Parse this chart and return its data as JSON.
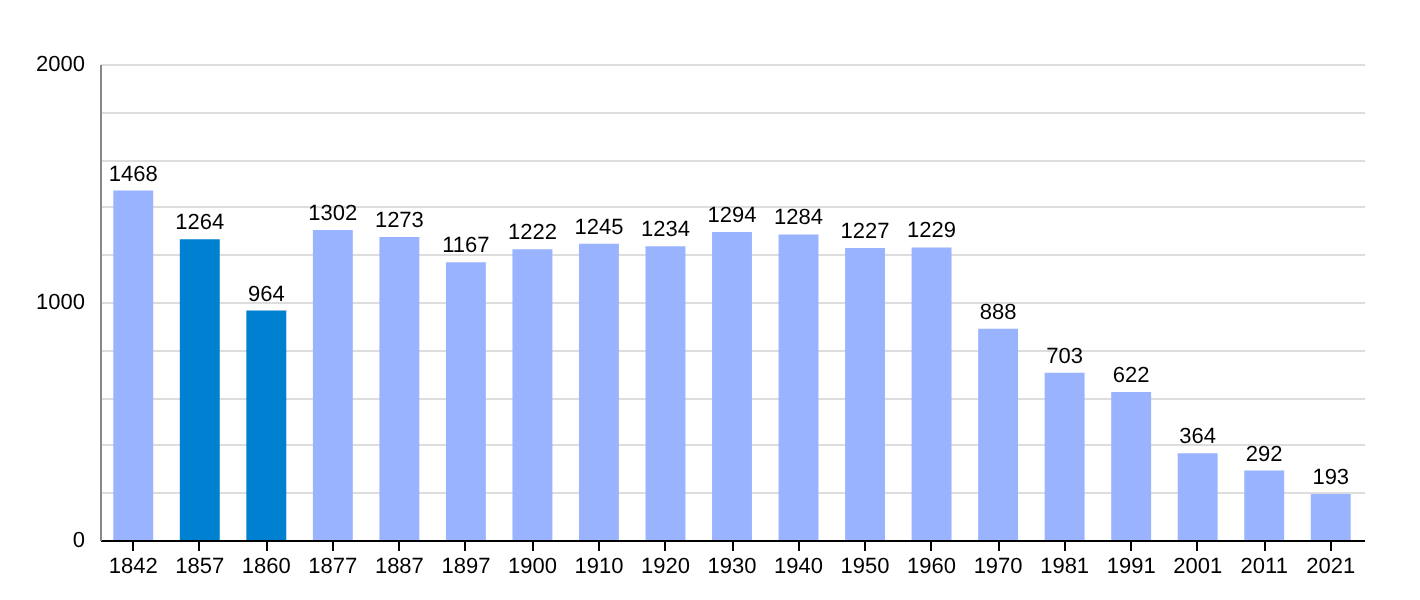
{
  "chart_data": {
    "type": "bar",
    "categories": [
      "1842",
      "1857",
      "1860",
      "1877",
      "1887",
      "1897",
      "1900",
      "1910",
      "1920",
      "1930",
      "1940",
      "1950",
      "1960",
      "1970",
      "1981",
      "1991",
      "2001",
      "2011",
      "2021"
    ],
    "values": [
      1468,
      1264,
      964,
      1302,
      1273,
      1167,
      1222,
      1245,
      1234,
      1294,
      1284,
      1227,
      1229,
      888,
      703,
      622,
      364,
      292,
      193
    ],
    "colors": [
      "#99b3ff",
      "#0080d0",
      "#0080d0",
      "#99b3ff",
      "#99b3ff",
      "#99b3ff",
      "#99b3ff",
      "#99b3ff",
      "#99b3ff",
      "#99b3ff",
      "#99b3ff",
      "#99b3ff",
      "#99b3ff",
      "#99b3ff",
      "#99b3ff",
      "#99b3ff",
      "#99b3ff",
      "#99b3ff",
      "#99b3ff"
    ],
    "ylim": [
      0,
      2000
    ],
    "yticks": [
      0,
      {
        "value": 200,
        "label": null
      },
      {
        "value": 400,
        "label": null
      },
      {
        "value": 600,
        "label": null
      },
      {
        "value": 800,
        "label": null
      },
      1000,
      {
        "value": 1200,
        "label": null
      },
      {
        "value": 1400,
        "label": null
      },
      {
        "value": 1600,
        "label": null
      },
      {
        "value": 1800,
        "label": null
      },
      2000
    ],
    "grid": "y",
    "data_labels": true
  }
}
